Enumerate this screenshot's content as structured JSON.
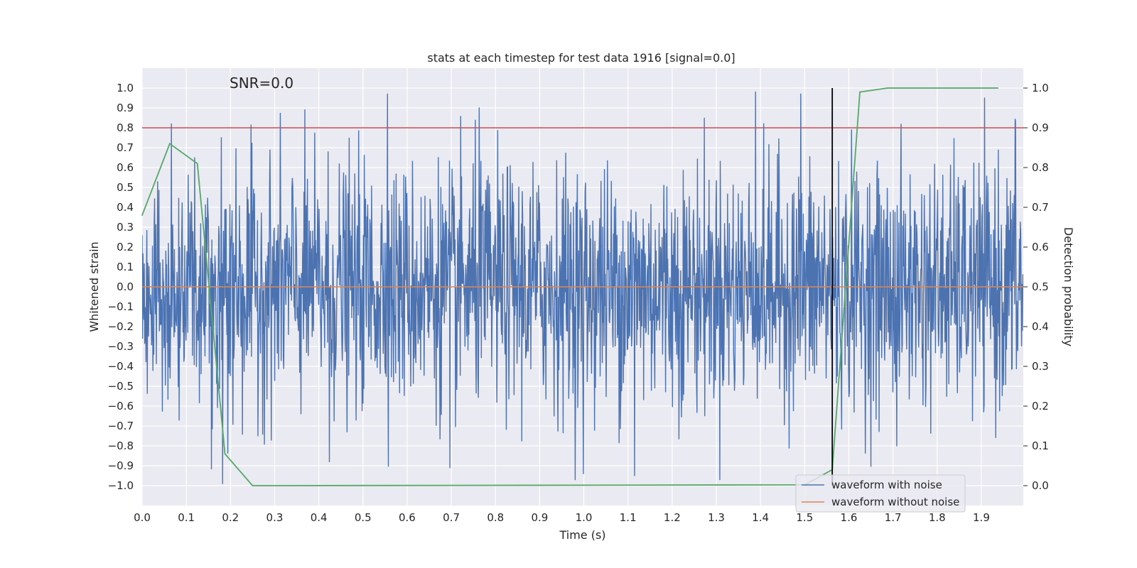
{
  "chart_data": {
    "type": "line",
    "title": "stats at each timestep for test data 1916 [signal=0.0]",
    "xlabel": "Time (s)",
    "ylabel": "Whitened strain",
    "y2label": "Detection probability",
    "annotation": "SNR=0.0",
    "xlim": [
      0.0,
      1.995
    ],
    "ylim": [
      -1.1,
      1.1
    ],
    "y2lim": [
      -0.05,
      1.05
    ],
    "grid": true,
    "x_ticks": [
      "0.0",
      "0.1",
      "0.2",
      "0.3",
      "0.4",
      "0.5",
      "0.6",
      "0.7",
      "0.8",
      "0.9",
      "1.0",
      "1.1",
      "1.2",
      "1.3",
      "1.4",
      "1.5",
      "1.6",
      "1.7",
      "1.8",
      "1.9"
    ],
    "y_ticks": [
      "1.0",
      "0.9",
      "0.8",
      "0.7",
      "0.6",
      "0.5",
      "0.4",
      "0.3",
      "0.2",
      "0.1",
      "0.0",
      "−0.1",
      "−0.2",
      "−0.3",
      "−0.4",
      "−0.5",
      "−0.6",
      "−0.7",
      "−0.8",
      "−0.9",
      "−1.0"
    ],
    "y2_ticks": [
      "1.0",
      "0.9",
      "0.8",
      "0.7",
      "0.6",
      "0.5",
      "0.4",
      "0.3",
      "0.2",
      "0.1",
      "0.0"
    ],
    "threshold": {
      "axis": "y2",
      "value": 0.9,
      "color": "#c44e52"
    },
    "event_marker": {
      "x": 1.5625,
      "y2_range": [
        0.0,
        1.0
      ],
      "color": "#000000"
    },
    "legend": {
      "position": "lower-right",
      "entries": [
        {
          "label": "waveform with noise",
          "color": "#4c72b0"
        },
        {
          "label": "waveform without noise",
          "color": "#dd8452"
        }
      ]
    },
    "series": [
      {
        "name": "waveform with noise",
        "axis": "y",
        "color": "#4c72b0",
        "note": "random-looking whitened strain noise sampled densely across 0–1.995 s, bounded roughly in [-1.0, 0.98]",
        "x_range": [
          0.0,
          1.995
        ],
        "peaks": [
          {
            "x": 0.066,
            "y": 0.82
          },
          {
            "x": 0.179,
            "y": 0.75
          },
          {
            "x": 0.182,
            "y": -0.99
          },
          {
            "x": 0.424,
            "y": -0.88
          },
          {
            "x": 0.556,
            "y": 0.97
          },
          {
            "x": 0.697,
            "y": -0.91
          },
          {
            "x": 0.763,
            "y": 0.9
          },
          {
            "x": 0.999,
            "y": -0.94
          },
          {
            "x": 1.115,
            "y": -0.95
          },
          {
            "x": 1.389,
            "y": 0.98
          },
          {
            "x": 1.491,
            "y": 0.97
          },
          {
            "x": 1.708,
            "y": -0.8
          },
          {
            "x": 1.977,
            "y": 0.83
          }
        ]
      },
      {
        "name": "waveform without noise",
        "axis": "y",
        "color": "#dd8452",
        "x": [
          0.0,
          1.995
        ],
        "y": [
          0.0,
          0.0
        ]
      },
      {
        "name": "detection probability",
        "axis": "y2",
        "color": "#55a868",
        "x": [
          0.0,
          0.0625,
          0.125,
          0.1875,
          0.25,
          0.3125,
          1.5,
          1.5625,
          1.625,
          1.6875,
          1.9375
        ],
        "y": [
          0.68,
          0.86,
          0.81,
          0.08,
          0.0,
          0.0,
          0.002,
          0.04,
          0.99,
          1.0,
          1.0
        ]
      }
    ]
  }
}
